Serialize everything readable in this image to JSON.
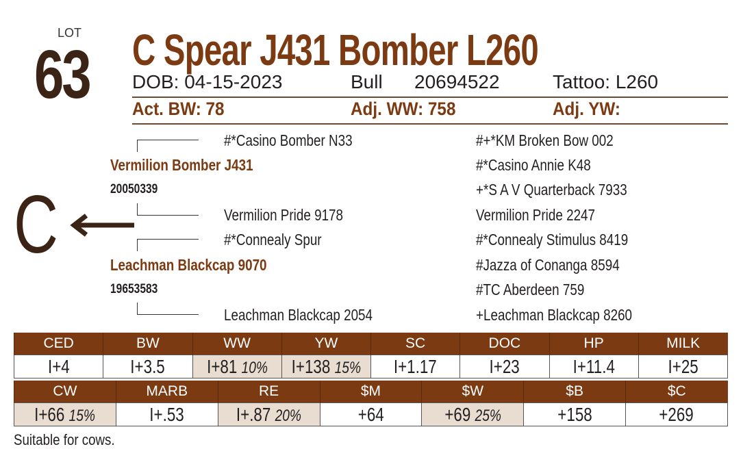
{
  "lot": {
    "label": "LOT",
    "number": "63"
  },
  "title": "C Spear J431 Bomber L260",
  "info": {
    "dob": "DOB: 04-15-2023",
    "sex": "Bull",
    "reg": "20694522",
    "tattoo": "Tattoo: L260"
  },
  "weights": {
    "bw": "Act. BW: 78",
    "ww": "Adj. WW: 758",
    "yw": "Adj. YW:"
  },
  "brand": {
    "letter": "C"
  },
  "pedigree": {
    "sire": "Vermilion Bomber J431",
    "sire_reg": "20050339",
    "dam": "Leachman Blackcap 9070",
    "dam_reg": "19653583",
    "ss": "#*Casino Bomber N33",
    "sd": "Vermilion Pride 9178",
    "ds": "#*Connealy Spur",
    "dd": "Leachman Blackcap 2054",
    "sss": "#+*KM Broken Bow 002",
    "ssd": "#*Casino Annie K48",
    "sds": "+*S A V Quarterback 7933",
    "sdd": "Vermilion Pride 2247",
    "dss": "#*Connealy Stimulus 8419",
    "dsd": "#Jazza of Conanga 8594",
    "dds": "#TC Aberdeen 759",
    "ddd": "+Leachman Blackcap 8260"
  },
  "epd1": [
    {
      "h": "CED",
      "v": "I+4",
      "p": ""
    },
    {
      "h": "BW",
      "v": "I+3.5",
      "p": ""
    },
    {
      "h": "WW",
      "v": "I+81",
      "p": "10%"
    },
    {
      "h": "YW",
      "v": "I+138",
      "p": "15%"
    },
    {
      "h": "SC",
      "v": "I+1.17",
      "p": ""
    },
    {
      "h": "DOC",
      "v": "I+23",
      "p": ""
    },
    {
      "h": "HP",
      "v": "I+11.4",
      "p": ""
    },
    {
      "h": "MILK",
      "v": "I+25",
      "p": ""
    }
  ],
  "epd2": [
    {
      "h": "CW",
      "v": "I+66",
      "p": "15%"
    },
    {
      "h": "MARB",
      "v": "I+.53",
      "p": ""
    },
    {
      "h": "RE",
      "v": "I+.87",
      "p": "20%"
    },
    {
      "h": "$M",
      "v": "+64",
      "p": ""
    },
    {
      "h": "$W",
      "v": "+69",
      "p": "25%"
    },
    {
      "h": "$B",
      "v": "+158",
      "p": ""
    },
    {
      "h": "$C",
      "v": "+269",
      "p": ""
    }
  ],
  "footnote": "Suitable for cows."
}
